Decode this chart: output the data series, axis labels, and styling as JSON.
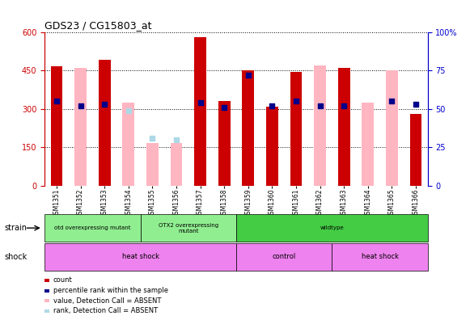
{
  "title": "GDS23 / CG15803_at",
  "samples": [
    "GSM1351",
    "GSM1352",
    "GSM1353",
    "GSM1354",
    "GSM1355",
    "GSM1356",
    "GSM1357",
    "GSM1358",
    "GSM1359",
    "GSM1360",
    "GSM1361",
    "GSM1362",
    "GSM1363",
    "GSM1364",
    "GSM1365",
    "GSM1366"
  ],
  "count_values": [
    465,
    0,
    490,
    0,
    0,
    0,
    580,
    330,
    450,
    308,
    445,
    0,
    460,
    0,
    0,
    280
  ],
  "pink_values": [
    0,
    460,
    0,
    325,
    165,
    165,
    0,
    0,
    0,
    0,
    0,
    470,
    0,
    325,
    450,
    0
  ],
  "blue_sq_pct": [
    55,
    52,
    53,
    0,
    0,
    0,
    54,
    51,
    72,
    52,
    55,
    52,
    52,
    0,
    55,
    53
  ],
  "blue_sq_absent": [
    false,
    false,
    false,
    false,
    true,
    true,
    false,
    false,
    false,
    false,
    false,
    false,
    false,
    false,
    false,
    false
  ],
  "light_blue_pct": [
    0,
    0,
    0,
    49,
    31,
    30,
    0,
    0,
    0,
    0,
    0,
    0,
    0,
    0,
    0,
    0
  ],
  "ylim_left": [
    0,
    600
  ],
  "ylim_right": [
    0,
    100
  ],
  "yticks_left": [
    0,
    150,
    300,
    450,
    600
  ],
  "ytick_labels_left": [
    "0",
    "150",
    "300",
    "450",
    "600"
  ],
  "yticks_right": [
    0,
    25,
    50,
    75,
    100
  ],
  "ytick_labels_right": [
    "0",
    "25",
    "50",
    "75",
    "100%"
  ],
  "strain_groups": [
    {
      "label": "otd overexpressing mutant",
      "start": 0,
      "end": 4,
      "color": "#90EE90"
    },
    {
      "label": "OTX2 overexpressing\nmutant",
      "start": 4,
      "end": 8,
      "color": "#90EE90"
    },
    {
      "label": "wildtype",
      "start": 8,
      "end": 16,
      "color": "#44CC44"
    }
  ],
  "shock_groups": [
    {
      "label": "heat shock",
      "start": 0,
      "end": 8,
      "color": "#EE82EE"
    },
    {
      "label": "control",
      "start": 8,
      "end": 12,
      "color": "#EE82EE"
    },
    {
      "label": "heat shock",
      "start": 12,
      "end": 16,
      "color": "#EE82EE"
    }
  ],
  "legend_items": [
    {
      "color": "#CC0000",
      "label": "count"
    },
    {
      "color": "#00008B",
      "label": "percentile rank within the sample"
    },
    {
      "color": "#FFB6C1",
      "label": "value, Detection Call = ABSENT"
    },
    {
      "color": "#ADD8E6",
      "label": "rank, Detection Call = ABSENT"
    }
  ],
  "bar_width": 0.5,
  "dot_size": 18,
  "left_axis_color": "#CC0000",
  "right_axis_color": "#0000CC",
  "background_color": "#ffffff"
}
